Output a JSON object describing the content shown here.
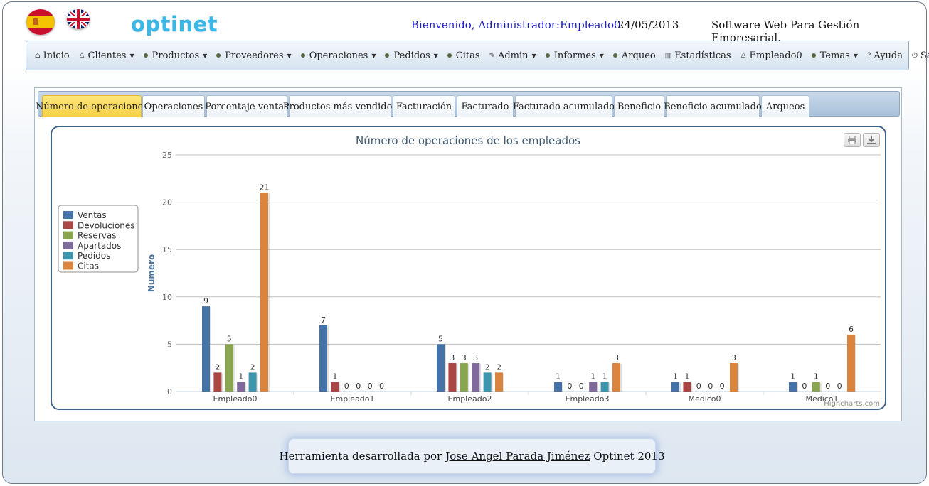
{
  "header": {
    "logo": "optinet",
    "welcome": "Bienvenido, Administrador:Empleado0",
    "date": "24/05/2013",
    "tagline": "Software Web Para Gestión Empresarial."
  },
  "menu": [
    {
      "label": "Inicio",
      "icon": "home-icon",
      "glyph": "⌂",
      "caret": false
    },
    {
      "label": "Clientes",
      "icon": "user-icon",
      "glyph": "♙",
      "caret": true
    },
    {
      "label": "Productos",
      "icon": "bullet-icon",
      "glyph": "",
      "caret": true
    },
    {
      "label": "Proveedores",
      "icon": "bullet-icon",
      "glyph": "",
      "caret": true
    },
    {
      "label": "Operaciones",
      "icon": "bullet-icon",
      "glyph": "",
      "caret": true
    },
    {
      "label": "Pedidos",
      "icon": "bullet-icon",
      "glyph": "",
      "caret": true
    },
    {
      "label": "Citas",
      "icon": "bullet-icon",
      "glyph": "",
      "caret": false
    },
    {
      "label": "Admin",
      "icon": "wrench-icon",
      "glyph": "✎",
      "caret": true
    },
    {
      "label": "Informes",
      "icon": "bullet-icon",
      "glyph": "",
      "caret": true
    },
    {
      "label": "Arqueo",
      "icon": "bullet-icon",
      "glyph": "",
      "caret": false
    },
    {
      "label": "Estadísticas",
      "icon": "bar-chart-icon",
      "glyph": "▥",
      "caret": false
    },
    {
      "label": "Empleado0",
      "icon": "user-icon",
      "glyph": "♙",
      "caret": false
    },
    {
      "label": "Temas",
      "icon": "bullet-icon",
      "glyph": "",
      "caret": true
    },
    {
      "label": "Ayuda",
      "icon": "help-icon",
      "glyph": "?",
      "caret": false
    },
    {
      "label": "Salir",
      "icon": "power-icon",
      "glyph": "⏻",
      "caret": false
    }
  ],
  "tabs": [
    {
      "label": "Número de operaciones",
      "active": true
    },
    {
      "label": "Operaciones",
      "active": false
    },
    {
      "label": "Porcentaje ventas",
      "active": false
    },
    {
      "label": "Productos más vendidos",
      "active": false
    },
    {
      "label": "Facturación",
      "active": false
    },
    {
      "label": "Facturado",
      "active": false
    },
    {
      "label": "Facturado acumulado",
      "active": false
    },
    {
      "label": "Beneficio",
      "active": false
    },
    {
      "label": "Beneficio acumulado",
      "active": false
    },
    {
      "label": "Arqueos",
      "active": false
    }
  ],
  "chart_data": {
    "type": "bar",
    "title": "Número de operaciones de los empleados",
    "ylabel": "Numero",
    "xlabel": "",
    "ylim": [
      0,
      25
    ],
    "yticks": [
      0,
      5,
      10,
      15,
      20,
      25
    ],
    "grid": true,
    "legend_position": "left",
    "credits": "Highcharts.com",
    "categories": [
      "Empleado0",
      "Empleado1",
      "Empleado2",
      "Empleado3",
      "Medico0",
      "Medico1"
    ],
    "series": [
      {
        "name": "Ventas",
        "color": "#4572A7",
        "values": [
          9,
          7,
          5,
          1,
          1,
          1
        ]
      },
      {
        "name": "Devoluciones",
        "color": "#AA4643",
        "values": [
          2,
          1,
          3,
          0,
          1,
          0
        ]
      },
      {
        "name": "Reservas",
        "color": "#89A54E",
        "values": [
          5,
          0,
          3,
          0,
          0,
          1
        ]
      },
      {
        "name": "Apartados",
        "color": "#80699B",
        "values": [
          1,
          0,
          3,
          1,
          0,
          0
        ]
      },
      {
        "name": "Pedidos",
        "color": "#3D96AE",
        "values": [
          2,
          0,
          2,
          1,
          0,
          0
        ]
      },
      {
        "name": "Citas",
        "color": "#DB843D",
        "values": [
          21,
          0,
          2,
          3,
          3,
          6
        ]
      }
    ]
  },
  "footer": {
    "prefix": "Herramienta desarrollada por",
    "author": "Jose Angel Parada Jiménez",
    "suffix": "Optinet 2013"
  }
}
